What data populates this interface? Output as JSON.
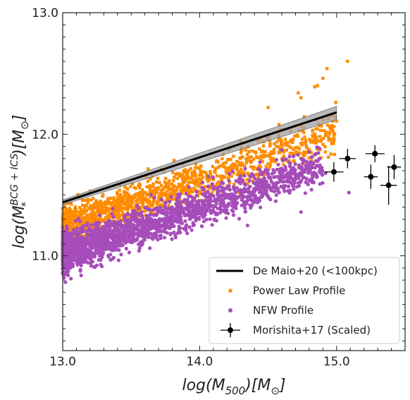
{
  "chart_data": {
    "type": "scatter",
    "xlabel": "log(M500)[M⊙]",
    "ylabel": "log(M*BCG + ICS)[M⊙]",
    "xlim": [
      13.0,
      15.5
    ],
    "ylim": [
      10.22,
      13.0
    ],
    "x_ticks": [
      "13.0",
      "14.0",
      "15.0"
    ],
    "y_ticks": [
      "11.0",
      "12.0",
      "13.0"
    ],
    "grid": false,
    "legend_position": "lower-right",
    "colors": {
      "power_law": "#ff8c00",
      "nfw": "#a64dba",
      "fit_line": "#000000",
      "fit_band": "#a0a0a0",
      "morishita": "#000000"
    },
    "series": [
      {
        "name": "De Maio+20 (<100kpc)",
        "kind": "line",
        "x": [
          13.0,
          15.0
        ],
        "y": [
          11.44,
          12.18
        ],
        "band_upper": [
          11.46,
          12.23
        ],
        "band_lower": [
          11.42,
          12.12
        ]
      },
      {
        "name": "Power Law Profile",
        "kind": "scatter",
        "marker": "square",
        "trend": {
          "slope": 0.4,
          "intercept_at_13": 11.22,
          "scatter": 0.22,
          "x_range": [
            13.0,
            15.0
          ]
        },
        "highlights": {
          "x": [
            14.74,
            14.84,
            14.93,
            15.08,
            14.9,
            14.72,
            14.58,
            14.5,
            14.86
          ],
          "y": [
            12.3,
            12.39,
            12.54,
            12.6,
            12.46,
            12.34,
            12.08,
            12.22,
            12.4
          ]
        }
      },
      {
        "name": "NFW Profile",
        "kind": "scatter",
        "marker": "circle",
        "trend": {
          "slope": 0.38,
          "intercept_at_13": 11.02,
          "scatter": 0.2,
          "x_range": [
            13.0,
            14.9
          ]
        },
        "highlights": {
          "x": [
            14.44,
            14.6,
            14.72,
            14.85,
            14.92,
            15.09,
            14.35,
            14.56,
            14.74,
            14.88
          ],
          "y": [
            11.77,
            11.87,
            11.6,
            11.84,
            11.68,
            11.52,
            11.25,
            11.5,
            11.36,
            11.72
          ]
        }
      },
      {
        "name": "Morishita+17 (Scaled)",
        "kind": "errorbar",
        "x": [
          14.98,
          15.08,
          15.25,
          15.28,
          15.38,
          15.42
        ],
        "y": [
          11.69,
          11.8,
          11.65,
          11.84,
          11.58,
          11.73
        ],
        "xerr": [
          0.07,
          0.06,
          0.05,
          0.07,
          0.06,
          0.05
        ],
        "yerr": [
          0.08,
          0.08,
          0.1,
          0.07,
          0.16,
          0.1
        ]
      }
    ]
  }
}
